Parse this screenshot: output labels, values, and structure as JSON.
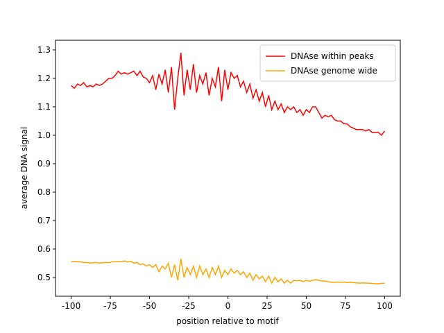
{
  "chart_data": {
    "type": "line",
    "xlabel": "position relative to motif",
    "ylabel": "average DNA signal",
    "x": [
      -100,
      -98,
      -96,
      -94,
      -92,
      -90,
      -88,
      -86,
      -84,
      -82,
      -80,
      -78,
      -76,
      -74,
      -72,
      -70,
      -68,
      -66,
      -64,
      -62,
      -60,
      -58,
      -56,
      -54,
      -52,
      -50,
      -48,
      -46,
      -44,
      -42,
      -40,
      -38,
      -36,
      -34,
      -32,
      -30,
      -28,
      -26,
      -24,
      -22,
      -20,
      -18,
      -16,
      -14,
      -12,
      -10,
      -8,
      -6,
      -4,
      -2,
      0,
      2,
      4,
      6,
      8,
      10,
      12,
      14,
      16,
      18,
      20,
      22,
      24,
      26,
      28,
      30,
      32,
      34,
      36,
      38,
      40,
      42,
      44,
      46,
      48,
      50,
      52,
      54,
      56,
      58,
      60,
      62,
      64,
      66,
      68,
      70,
      72,
      74,
      76,
      78,
      80,
      82,
      84,
      86,
      88,
      90,
      92,
      94,
      96,
      98,
      100
    ],
    "series": [
      {
        "name": "DNAse within peaks",
        "color": "#ff0000",
        "values": [
          1.175,
          1.165,
          1.18,
          1.175,
          1.185,
          1.17,
          1.175,
          1.17,
          1.18,
          1.175,
          1.18,
          1.19,
          1.2,
          1.2,
          1.21,
          1.225,
          1.215,
          1.22,
          1.215,
          1.22,
          1.225,
          1.21,
          1.225,
          1.205,
          1.2,
          1.185,
          1.21,
          1.16,
          1.215,
          1.18,
          1.23,
          1.15,
          1.24,
          1.09,
          1.2,
          1.29,
          1.14,
          1.23,
          1.16,
          1.25,
          1.15,
          1.21,
          1.18,
          1.22,
          1.14,
          1.2,
          1.17,
          1.24,
          1.12,
          1.23,
          1.16,
          1.22,
          1.2,
          1.21,
          1.17,
          1.19,
          1.15,
          1.18,
          1.13,
          1.16,
          1.12,
          1.15,
          1.1,
          1.14,
          1.09,
          1.12,
          1.09,
          1.11,
          1.08,
          1.1,
          1.09,
          1.1,
          1.08,
          1.09,
          1.07,
          1.09,
          1.08,
          1.1,
          1.1,
          1.08,
          1.06,
          1.07,
          1.065,
          1.07,
          1.055,
          1.05,
          1.05,
          1.04,
          1.04,
          1.03,
          1.025,
          1.02,
          1.02,
          1.02,
          1.015,
          1.02,
          1.01,
          1.01,
          1.01,
          1.0,
          1.015
        ]
      },
      {
        "name": "DNAse genome wide",
        "color": "#ffa500",
        "values": [
          0.555,
          0.557,
          0.556,
          0.555,
          0.552,
          0.553,
          0.55,
          0.552,
          0.553,
          0.55,
          0.552,
          0.553,
          0.552,
          0.555,
          0.555,
          0.557,
          0.556,
          0.558,
          0.555,
          0.557,
          0.55,
          0.553,
          0.545,
          0.548,
          0.54,
          0.545,
          0.535,
          0.545,
          0.52,
          0.54,
          0.53,
          0.55,
          0.5,
          0.545,
          0.49,
          0.565,
          0.5,
          0.535,
          0.51,
          0.54,
          0.5,
          0.54,
          0.51,
          0.53,
          0.5,
          0.535,
          0.51,
          0.54,
          0.5,
          0.525,
          0.51,
          0.53,
          0.515,
          0.525,
          0.51,
          0.52,
          0.5,
          0.515,
          0.49,
          0.51,
          0.495,
          0.505,
          0.485,
          0.505,
          0.48,
          0.5,
          0.485,
          0.495,
          0.48,
          0.49,
          0.48,
          0.49,
          0.488,
          0.49,
          0.485,
          0.49,
          0.487,
          0.49,
          0.492,
          0.49,
          0.488,
          0.487,
          0.485,
          0.483,
          0.483,
          0.484,
          0.483,
          0.484,
          0.482,
          0.483,
          0.482,
          0.481,
          0.48,
          0.481,
          0.48,
          0.48,
          0.479,
          0.478,
          0.478,
          0.479,
          0.48
        ]
      }
    ],
    "xlim": [
      -110,
      110
    ],
    "ylim": [
      0.434,
      1.334
    ],
    "xticks": [
      -100,
      -75,
      -50,
      -25,
      0,
      25,
      50,
      75,
      100
    ],
    "yticks": [
      0.5,
      0.6,
      0.7,
      0.8,
      0.9,
      {
        "value": 1,
        "label": "1.0"
      },
      1.1,
      1.2,
      1.3
    ],
    "legend": "upper right"
  }
}
